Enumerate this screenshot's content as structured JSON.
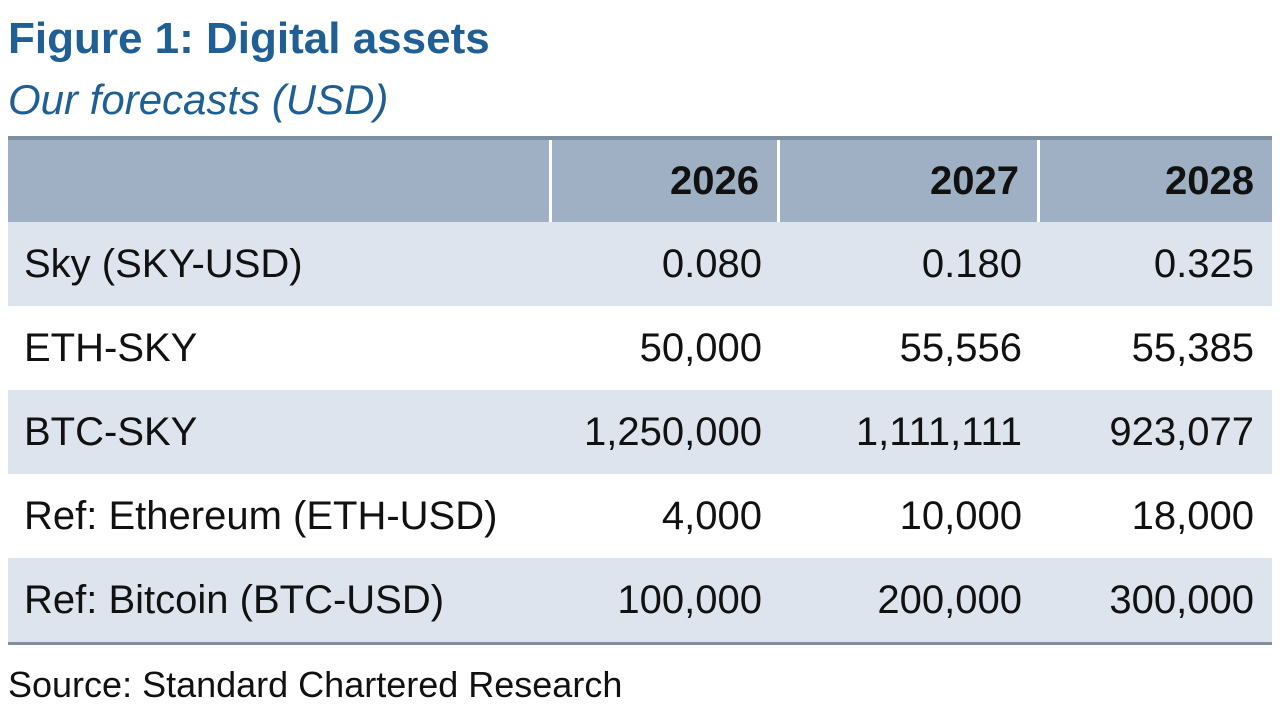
{
  "figure": {
    "title": "Figure 1: Digital assets",
    "subtitle": "Our forecasts (USD)",
    "source": "Source: Standard Chartered Research"
  },
  "table": {
    "columns": [
      "",
      "2026",
      "2027",
      "2028"
    ],
    "rows": [
      {
        "label": "Sky (SKY-USD)",
        "values": [
          "0.080",
          "0.180",
          "0.325"
        ]
      },
      {
        "label": "ETH-SKY",
        "values": [
          "50,000",
          "55,556",
          "55,385"
        ]
      },
      {
        "label": "BTC-SKY",
        "values": [
          "1,250,000",
          "1,111,111",
          "923,077"
        ]
      },
      {
        "label": "Ref: Ethereum (ETH-USD)",
        "values": [
          "4,000",
          "10,000",
          "18,000"
        ]
      },
      {
        "label": "Ref: Bitcoin (BTC-USD)",
        "values": [
          "100,000",
          "200,000",
          "300,000"
        ]
      }
    ]
  },
  "colors": {
    "title": "#1f5f93",
    "header_bg": "#9fb0c4",
    "row_shade": "#dde4ee",
    "rule": "#7f8ea0"
  }
}
